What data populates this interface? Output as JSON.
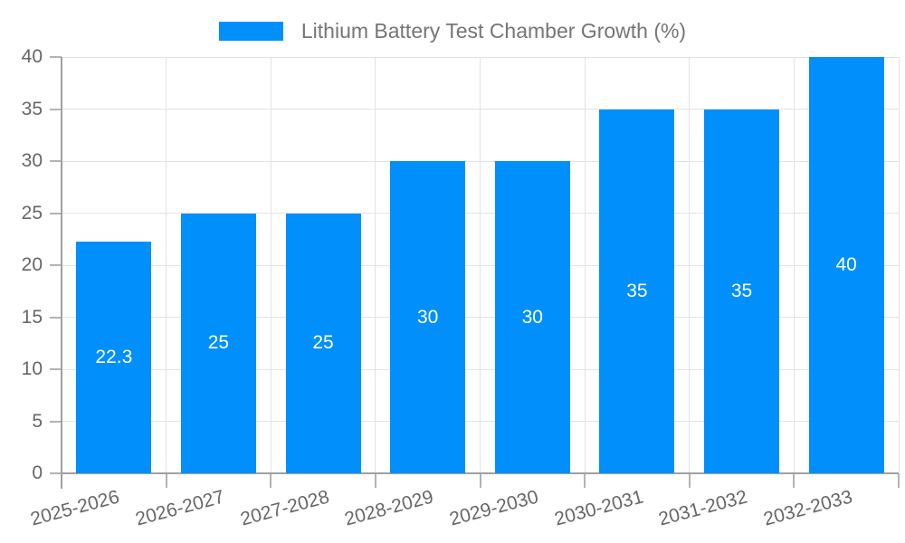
{
  "chart_data": {
    "type": "bar",
    "title": "Lithium Battery Test Chamber Growth (%)",
    "legend_position": "top",
    "categories": [
      "2025-2026",
      "2026-2027",
      "2027-2028",
      "2028-2029",
      "2029-2030",
      "2030-2031",
      "2031-2032",
      "2032-2033"
    ],
    "series": [
      {
        "name": "Lithium Battery Test Chamber Growth (%)",
        "values": [
          22.3,
          25,
          25,
          30,
          30,
          35,
          35,
          40
        ]
      }
    ],
    "data_labels": [
      "22.3",
      "25",
      "25",
      "30",
      "30",
      "35",
      "35",
      "40"
    ],
    "xlabel": "",
    "ylabel": "",
    "ylim": [
      0,
      40
    ],
    "yticks": [
      0,
      5,
      10,
      15,
      20,
      25,
      30,
      35,
      40
    ],
    "grid": true,
    "x_label_rotation_deg": -15,
    "colors": {
      "bar": "#008FFB",
      "grid": "#e3e3e3",
      "axis": "#a0a0a0",
      "tick": "#b3b3b3",
      "axis_text": "#666666",
      "legend_text": "#757575",
      "data_label": "#ffffff",
      "background": "#ffffff"
    }
  }
}
